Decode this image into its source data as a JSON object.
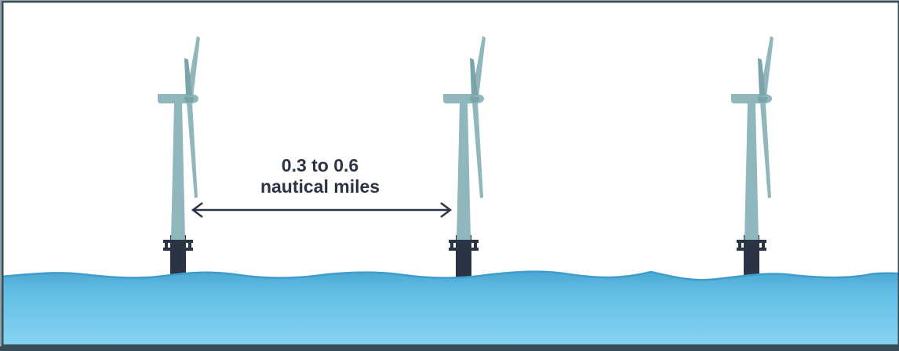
{
  "label": {
    "line1": "0.3 to 0.6",
    "line2": "nautical miles"
  },
  "colors": {
    "turbine": "#8fb7bc",
    "turbine_dark": "#7aa4aa",
    "foundation": "#2b3444",
    "water_top": "#4aa8d4",
    "water_bottom": "#87d3f0",
    "frame": "#3a4d57",
    "arrow": "#2b3444"
  }
}
